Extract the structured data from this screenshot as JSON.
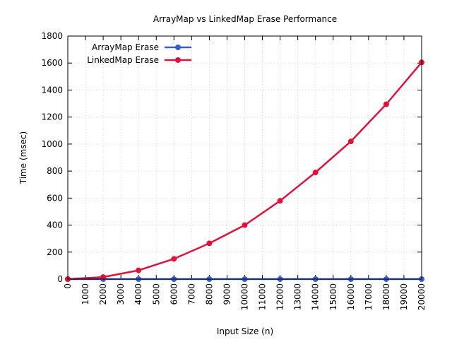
{
  "chart_data": {
    "type": "line",
    "title": "ArrayMap vs LinkedMap Erase Performance",
    "xlabel": "Input Size (n)",
    "ylabel": "Time (msec)",
    "xlim": [
      0,
      20000
    ],
    "ylim": [
      0,
      1800
    ],
    "x_ticks": [
      0,
      1000,
      2000,
      3000,
      4000,
      5000,
      6000,
      7000,
      8000,
      9000,
      10000,
      11000,
      12000,
      13000,
      14000,
      15000,
      16000,
      17000,
      18000,
      19000,
      20000
    ],
    "y_ticks": [
      0,
      200,
      400,
      600,
      800,
      1000,
      1200,
      1400,
      1600,
      1800
    ],
    "grid": true,
    "legend_position": "top-left",
    "x": [
      0,
      2000,
      4000,
      6000,
      8000,
      10000,
      12000,
      14000,
      16000,
      18000,
      20000
    ],
    "series": [
      {
        "name": "ArrayMap Erase",
        "color": "#3a5fcd",
        "values": [
          0,
          0,
          0,
          0,
          0,
          0,
          0,
          0,
          0,
          0,
          0
        ]
      },
      {
        "name": "LinkedMap Erase",
        "color": "#dc143c",
        "values": [
          0,
          15,
          65,
          150,
          265,
          400,
          580,
          790,
          1020,
          1295,
          1605
        ]
      }
    ]
  }
}
